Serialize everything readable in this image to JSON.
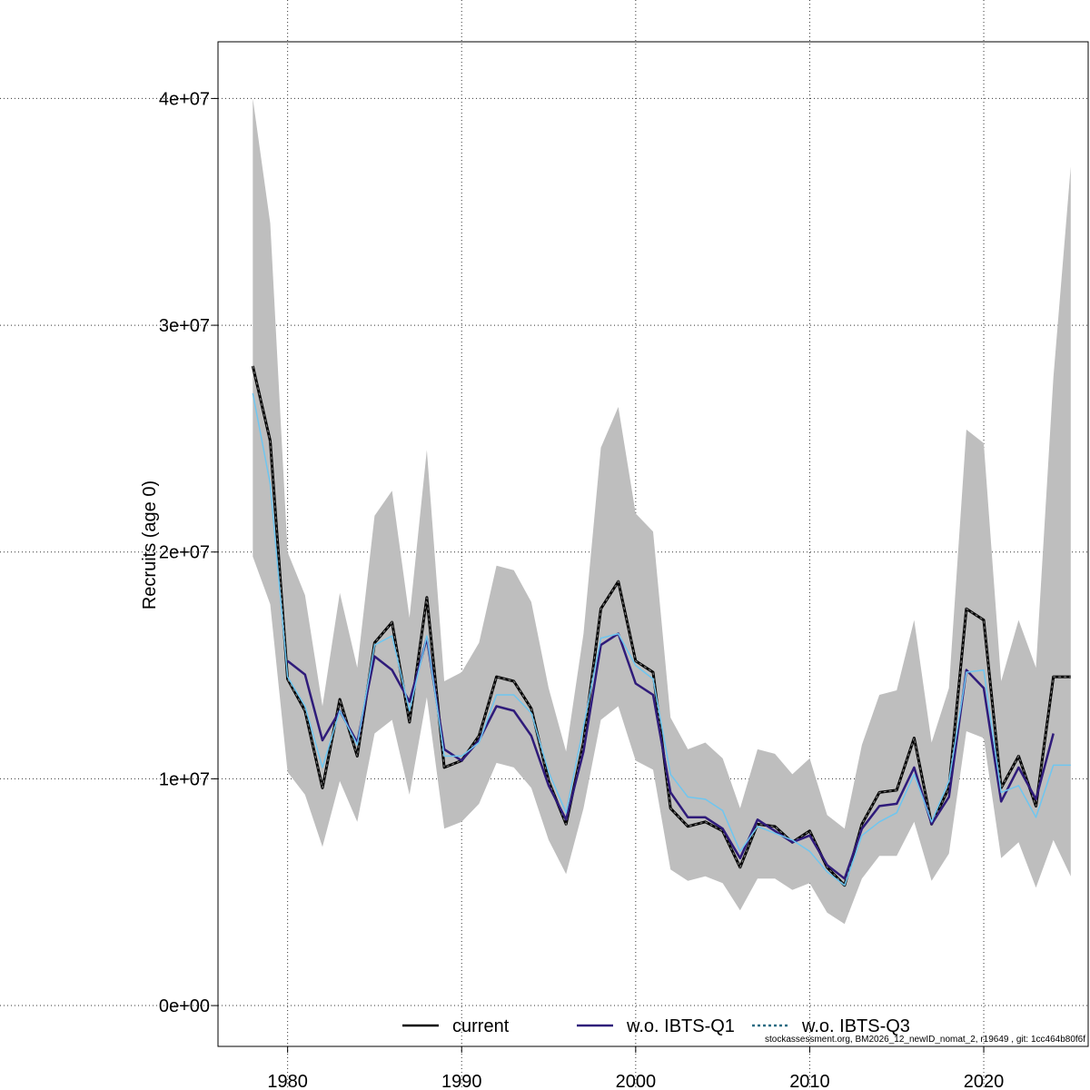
{
  "chart_data": {
    "type": "line",
    "ylabel": "Recruits (age 0)",
    "xlabel": "",
    "xlim": [
      1976,
      2026
    ],
    "ylim": [
      -1800000,
      42500000
    ],
    "x_ticks": [
      1980,
      1990,
      2000,
      2010,
      2020
    ],
    "y_ticks": [
      0,
      10000000,
      20000000,
      30000000,
      40000000
    ],
    "y_tick_labels": [
      "0e+00",
      "1e+07",
      "2e+07",
      "3e+07",
      "4e+07"
    ],
    "grid": true,
    "footer_note": "stockassessment.org, BM2026_12_newID_nomat_2, r19649 , git: 1cc464b80f6f",
    "x": [
      1978,
      1979,
      1980,
      1981,
      1982,
      1983,
      1984,
      1985,
      1986,
      1987,
      1988,
      1989,
      1990,
      1991,
      1992,
      1993,
      1994,
      1995,
      1996,
      1997,
      1998,
      1999,
      2000,
      2001,
      2002,
      2003,
      2004,
      2005,
      2006,
      2007,
      2008,
      2009,
      2010,
      2011,
      2012,
      2013,
      2014,
      2015,
      2016,
      2017,
      2018,
      2019,
      2020,
      2021,
      2022,
      2023,
      2024,
      2025
    ],
    "confidence_band": {
      "upper": [
        40000000,
        34500000,
        20000000,
        18100000,
        13200000,
        18200000,
        14900000,
        21600000,
        22700000,
        17100000,
        24500000,
        14300000,
        14700000,
        16000000,
        19400000,
        19200000,
        17800000,
        14000000,
        11200000,
        16400000,
        24600000,
        26400000,
        21700000,
        20900000,
        12700000,
        11300000,
        11600000,
        10900000,
        8700000,
        11300000,
        11100000,
        10200000,
        10900000,
        8400000,
        7800000,
        11500000,
        13700000,
        13900000,
        17000000,
        11600000,
        14000000,
        25400000,
        24800000,
        14300000,
        17000000,
        14900000,
        27700000,
        37000000
      ],
      "lower": [
        19800000,
        17700000,
        10300000,
        9300000,
        7000000,
        9900000,
        8100000,
        12000000,
        12600000,
        9300000,
        13600000,
        7800000,
        8100000,
        8900000,
        10700000,
        10500000,
        9600000,
        7300000,
        5800000,
        8700000,
        12600000,
        13200000,
        10800000,
        10400000,
        6000000,
        5500000,
        5700000,
        5400000,
        4200000,
        5600000,
        5600000,
        5100000,
        5400000,
        4100000,
        3600000,
        5600000,
        6600000,
        6600000,
        8100000,
        5500000,
        6700000,
        12100000,
        11800000,
        6500000,
        7200000,
        5200000,
        7300000,
        5700000
      ]
    },
    "series": [
      {
        "name": "current",
        "color": "#000000",
        "dash": "solid",
        "values": [
          28200000,
          24900000,
          14400000,
          13000000,
          9600000,
          13500000,
          11000000,
          16000000,
          16900000,
          12500000,
          18000000,
          10500000,
          10800000,
          11900000,
          14500000,
          14300000,
          13100000,
          9900000,
          8000000,
          11600000,
          17500000,
          18700000,
          15200000,
          14700000,
          8700000,
          7900000,
          8100000,
          7700000,
          6100000,
          8000000,
          7900000,
          7200000,
          7700000,
          6100000,
          5300000,
          8000000,
          9400000,
          9500000,
          11800000,
          8000000,
          9600000,
          17500000,
          17000000,
          9600000,
          11000000,
          8800000,
          14500000,
          14500000
        ]
      },
      {
        "name": "w.o. IBTS-Q1",
        "color": "#2f1b7a",
        "dash": "solid",
        "values": [
          null,
          null,
          15200000,
          14600000,
          11700000,
          13000000,
          11600000,
          15400000,
          14800000,
          13400000,
          16200000,
          11300000,
          10800000,
          11700000,
          13200000,
          13000000,
          11900000,
          9700000,
          8200000,
          11200000,
          15900000,
          16400000,
          14200000,
          13700000,
          9400000,
          8300000,
          8300000,
          7800000,
          6500000,
          8200000,
          7700000,
          7200000,
          7500000,
          6200000,
          5600000,
          7800000,
          8800000,
          8900000,
          10500000,
          8000000,
          9200000,
          14800000,
          14000000,
          9000000,
          10500000,
          9100000,
          12000000,
          null
        ]
      },
      {
        "name": "w.o. IBTS-Q3",
        "color": "#6ec6f0",
        "dash": "solid",
        "values": [
          27000000,
          23000000,
          14500000,
          13200000,
          10500000,
          13000000,
          11500000,
          15900000,
          16300000,
          13000000,
          16300000,
          11000000,
          11000000,
          11600000,
          13700000,
          13700000,
          12900000,
          10300000,
          8500000,
          12300000,
          16200000,
          16400000,
          15000000,
          14400000,
          10200000,
          9200000,
          9100000,
          8600000,
          6800000,
          7900000,
          7600000,
          7300000,
          6800000,
          5900000,
          5300000,
          7500000,
          8100000,
          8500000,
          10200000,
          8100000,
          9900000,
          14700000,
          14800000,
          9400000,
          9700000,
          8300000,
          10600000,
          10600000
        ]
      }
    ],
    "legend": {
      "placement": "bottom-center",
      "entries": [
        {
          "label": "current",
          "color": "#000000",
          "style": "solid"
        },
        {
          "label": "w.o. IBTS-Q1",
          "color": "#2f1b7a",
          "style": "solid"
        },
        {
          "label": "w.o. IBTS-Q3",
          "color": "#2b6d83",
          "style": "dotted"
        }
      ]
    }
  }
}
